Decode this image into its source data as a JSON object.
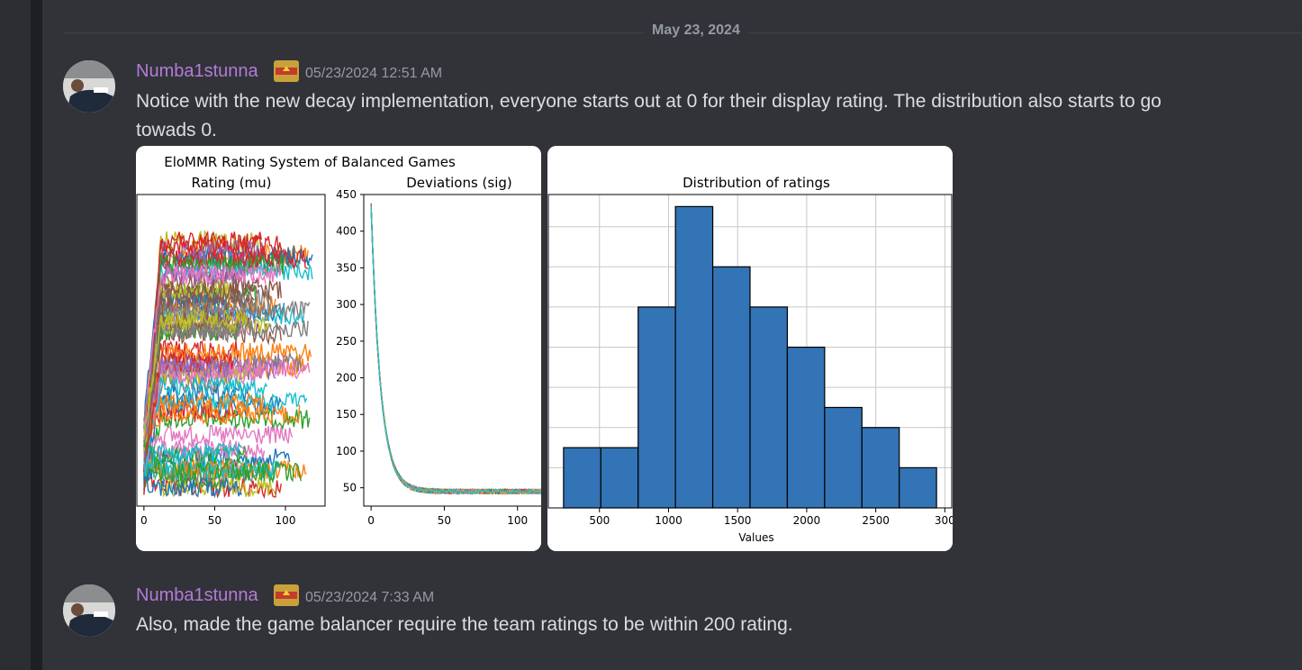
{
  "date_divider": "May 23, 2024",
  "messages": [
    {
      "username": "Numba1stunna",
      "timestamp": "05/23/2024 12:51 AM",
      "text_line1": "Notice with the new decay implementation, everyone starts out at 0 for their display rating. The distribution also starts to go",
      "text_line2": "towads 0."
    },
    {
      "username": "Numba1stunna",
      "timestamp": "05/23/2024 7:33 AM",
      "text_line1": "Also, made the game balancer require the team ratings to be within 200 rating."
    }
  ],
  "icons": {
    "avatar": "avatar-photo",
    "role": "flag-role-icon"
  },
  "colors": {
    "username": "#b47ad8",
    "background": "#313338",
    "bar": "#3274b5"
  },
  "chart_data": [
    {
      "type": "line",
      "title": "EloMMR Rating System of Balanced Games",
      "subtitle": "Rating (mu)",
      "xlabel": "",
      "ylabel": "",
      "xlim": [
        -5,
        128
      ],
      "x_ticks": [
        "0",
        "50",
        "100"
      ],
      "note": "many overlapping player rating trajectories (approx. 70 series)"
    },
    {
      "type": "line",
      "title": "Deviations (sig)",
      "xlim": [
        -5,
        118
      ],
      "ylim": [
        25,
        450
      ],
      "x_ticks": [
        "0",
        "50",
        "100"
      ],
      "y_ticks": [
        "450",
        "400",
        "350",
        "300",
        "250",
        "200",
        "150",
        "100",
        "50"
      ],
      "series_shape": {
        "start": 435,
        "floor": 45
      }
    },
    {
      "type": "bar",
      "title": "Distribution of ratings",
      "xlabel": "Values",
      "xlim": [
        130,
        3050
      ],
      "x_ticks": [
        "500",
        "1000",
        "1500",
        "2000",
        "2500",
        "300"
      ],
      "bin_edges": [
        240,
        510,
        780,
        1050,
        1320,
        1590,
        1860,
        2130,
        2400,
        2670,
        2940
      ],
      "values": [
        3,
        3,
        10,
        15,
        12,
        10,
        8,
        5,
        4,
        2
      ],
      "ylim": [
        0,
        15.6
      ],
      "grid": true
    }
  ]
}
